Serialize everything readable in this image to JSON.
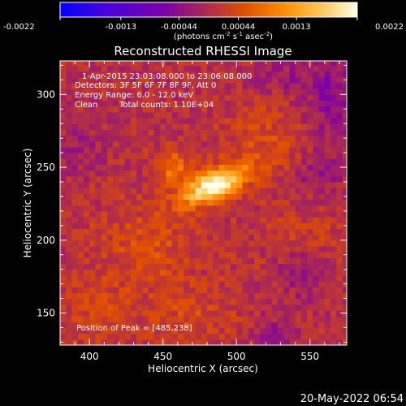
{
  "chart_data": {
    "type": "heatmap",
    "title": "Reconstructed RHESSI Image",
    "xlabel": "Heliocentric X (arcsec)",
    "ylabel": "Heliocentric Y (arcsec)",
    "xlim": [
      380,
      575
    ],
    "ylim": [
      128,
      323
    ],
    "xticks": [
      400,
      450,
      500,
      550
    ],
    "yticks": [
      150,
      200,
      250,
      300
    ],
    "colorbar": {
      "min": -0.0022,
      "max": 0.0022,
      "ticks": [
        "-0.0022",
        "-0.0013",
        "-0.00044",
        "0.00044",
        "0.0013",
        "0.0022"
      ],
      "units_line": "(photons cm",
      "units_exp1": "-2",
      "units_mid": " s",
      "units_exp2": "-1",
      "units_end": " asec",
      "units_exp3": "-2",
      "units_close": ")",
      "colors": [
        "#0000ff",
        "#4800e0",
        "#7a00a8",
        "#b02c4a",
        "#e04e00",
        "#ff8c00",
        "#ffc85a",
        "#ffffe6"
      ]
    },
    "info": {
      "time_range": "1-Apr-2015 23:03:08.000 to 23:06:08.000",
      "detectors": "Detectors: 3F 5F 6F 7F 8F 9F, Att 0",
      "energy": "Energy Range: 6.0 - 12.0 keV",
      "method": "Clean",
      "counts": "Total counts: 1.10E+04",
      "peak": "Position of Peak = [485,238]"
    },
    "peak": [
      485,
      238
    ],
    "sources": [
      {
        "x": 485,
        "y": 238,
        "sx": 16,
        "sy": 7,
        "rot": -25,
        "amp": 0.0022
      },
      {
        "x": 457,
        "y": 250,
        "sx": 9,
        "sy": 8,
        "rot": 0,
        "amp": 0.0008
      },
      {
        "x": 440,
        "y": 196,
        "sx": 24,
        "sy": 20,
        "rot": 0,
        "amp": 0.0004
      },
      {
        "x": 520,
        "y": 268,
        "sx": 18,
        "sy": 18,
        "rot": 0,
        "amp": 0.00035
      },
      {
        "x": 470,
        "y": 150,
        "sx": 22,
        "sy": 14,
        "rot": 0,
        "amp": 0.0003
      },
      {
        "x": 405,
        "y": 150,
        "sx": 18,
        "sy": 16,
        "rot": 0,
        "amp": 0.0003
      },
      {
        "x": 545,
        "y": 200,
        "sx": 20,
        "sy": 20,
        "rot": 0,
        "amp": 0.0002
      },
      {
        "x": 565,
        "y": 300,
        "sx": 14,
        "sy": 22,
        "rot": 0,
        "amp": -0.0005
      },
      {
        "x": 555,
        "y": 245,
        "sx": 12,
        "sy": 10,
        "rot": 0,
        "amp": -0.0004
      },
      {
        "x": 545,
        "y": 178,
        "sx": 14,
        "sy": 12,
        "rot": 0,
        "amp": -0.0004
      },
      {
        "x": 528,
        "y": 135,
        "sx": 12,
        "sy": 8,
        "rot": 0,
        "amp": -0.0004
      },
      {
        "x": 395,
        "y": 262,
        "sx": 12,
        "sy": 12,
        "rot": 0,
        "amp": -0.00025
      },
      {
        "x": 530,
        "y": 312,
        "sx": 14,
        "sy": 8,
        "rot": 0,
        "amp": -0.0003
      }
    ]
  },
  "footer": {
    "timestamp": "20-May-2022 06:54"
  }
}
